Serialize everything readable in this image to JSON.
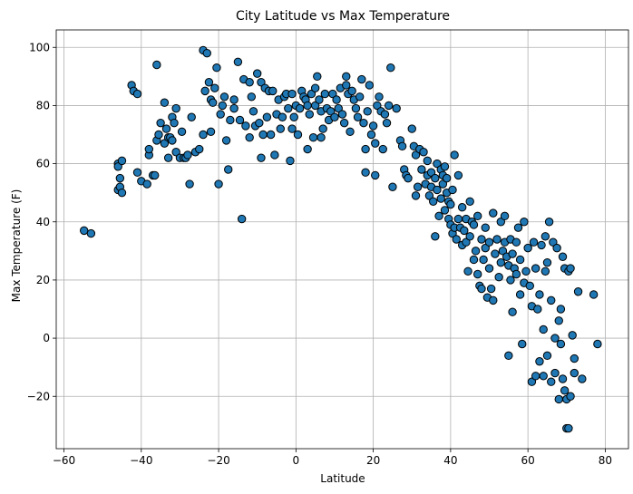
{
  "chart_data": {
    "type": "scatter",
    "title": "City Latitude vs Max Temperature",
    "xlabel": "Latitude",
    "ylabel": "Max Temperature (F)",
    "xlim": [
      -62,
      86
    ],
    "ylim": [
      -38,
      106
    ],
    "xticks": [
      -60,
      -40,
      -20,
      0,
      20,
      40,
      60,
      80
    ],
    "yticks": [
      -20,
      0,
      20,
      40,
      60,
      80,
      100
    ],
    "grid": true,
    "marker_color": "#1f77b4",
    "marker_edge_color": "#000000",
    "points": [
      [
        -54.8,
        37
      ],
      [
        -53,
        36
      ],
      [
        -46,
        60
      ],
      [
        -46,
        59
      ],
      [
        -45.5,
        55
      ],
      [
        -46,
        51
      ],
      [
        -45.5,
        52
      ],
      [
        -45,
        50
      ],
      [
        -45,
        61
      ],
      [
        -42.5,
        87
      ],
      [
        -42,
        85
      ],
      [
        -41,
        84
      ],
      [
        -41,
        57
      ],
      [
        -40,
        54
      ],
      [
        -38.5,
        53
      ],
      [
        -38,
        63
      ],
      [
        -38,
        65
      ],
      [
        -37,
        56
      ],
      [
        -36.5,
        56
      ],
      [
        -36,
        68
      ],
      [
        -36,
        94
      ],
      [
        -35.5,
        70
      ],
      [
        -35,
        74
      ],
      [
        -34,
        67
      ],
      [
        -34,
        81
      ],
      [
        -33.5,
        72
      ],
      [
        -33,
        69
      ],
      [
        -33,
        62
      ],
      [
        -32.5,
        69
      ],
      [
        -32,
        68
      ],
      [
        -32,
        76
      ],
      [
        -31.5,
        74
      ],
      [
        -31,
        64
      ],
      [
        -31,
        79
      ],
      [
        -30,
        62
      ],
      [
        -29.5,
        71
      ],
      [
        -29,
        62
      ],
      [
        -28.5,
        62
      ],
      [
        -28,
        63
      ],
      [
        -27.5,
        53
      ],
      [
        -27,
        76
      ],
      [
        -26,
        64
      ],
      [
        -25,
        65
      ],
      [
        -24,
        70
      ],
      [
        -24,
        99
      ],
      [
        -23.5,
        85
      ],
      [
        -23,
        98
      ],
      [
        -22.5,
        88
      ],
      [
        -22,
        71
      ],
      [
        -22,
        82
      ],
      [
        -21.5,
        81
      ],
      [
        -21,
        86
      ],
      [
        -20.5,
        93
      ],
      [
        -20,
        53
      ],
      [
        -19.5,
        77
      ],
      [
        -19,
        80
      ],
      [
        -18.5,
        83
      ],
      [
        -18,
        68
      ],
      [
        -17.5,
        58
      ],
      [
        -17,
        75
      ],
      [
        -16,
        79
      ],
      [
        -16,
        82
      ],
      [
        -15,
        95
      ],
      [
        -14.5,
        75
      ],
      [
        -14,
        41
      ],
      [
        -13.5,
        89
      ],
      [
        -13,
        73
      ],
      [
        -12,
        88
      ],
      [
        -12,
        69
      ],
      [
        -11.5,
        83
      ],
      [
        -11,
        78
      ],
      [
        -10.5,
        73
      ],
      [
        -10,
        91
      ],
      [
        -9.5,
        74
      ],
      [
        -9,
        62
      ],
      [
        -9,
        88
      ],
      [
        -8.5,
        70
      ],
      [
        -8,
        86
      ],
      [
        -7.5,
        76
      ],
      [
        -7,
        85
      ],
      [
        -6.5,
        70
      ],
      [
        -6,
        85
      ],
      [
        -5.5,
        63
      ],
      [
        -5,
        77
      ],
      [
        -4.5,
        82
      ],
      [
        -4,
        72
      ],
      [
        -3.5,
        76
      ],
      [
        -3,
        83
      ],
      [
        -2.5,
        84
      ],
      [
        -2,
        79
      ],
      [
        -1.5,
        61
      ],
      [
        -1,
        84
      ],
      [
        -1,
        72
      ],
      [
        -0.5,
        76
      ],
      [
        0,
        80
      ],
      [
        0.5,
        70
      ],
      [
        1,
        79
      ],
      [
        1.5,
        85
      ],
      [
        2,
        83
      ],
      [
        2.5,
        82
      ],
      [
        3,
        80
      ],
      [
        3,
        65
      ],
      [
        3.5,
        77
      ],
      [
        4,
        84
      ],
      [
        4.5,
        69
      ],
      [
        5,
        86
      ],
      [
        5,
        80
      ],
      [
        5.5,
        90
      ],
      [
        6,
        82
      ],
      [
        6.5,
        78
      ],
      [
        6.5,
        69
      ],
      [
        7,
        72
      ],
      [
        7.5,
        84
      ],
      [
        8,
        79
      ],
      [
        8.5,
        75
      ],
      [
        9,
        78
      ],
      [
        9.5,
        84
      ],
      [
        10,
        76
      ],
      [
        10.5,
        82
      ],
      [
        11,
        79
      ],
      [
        11.5,
        86
      ],
      [
        12,
        77
      ],
      [
        12.5,
        74
      ],
      [
        13,
        90
      ],
      [
        13,
        87
      ],
      [
        13.5,
        84
      ],
      [
        14,
        71
      ],
      [
        14.5,
        85
      ],
      [
        15,
        82
      ],
      [
        15.5,
        79
      ],
      [
        16,
        76
      ],
      [
        16.5,
        83
      ],
      [
        17,
        89
      ],
      [
        17.5,
        74
      ],
      [
        18,
        65
      ],
      [
        18,
        57
      ],
      [
        18.5,
        78
      ],
      [
        19,
        87
      ],
      [
        19.5,
        70
      ],
      [
        20,
        73
      ],
      [
        20.5,
        67
      ],
      [
        20.5,
        56
      ],
      [
        21,
        80
      ],
      [
        21.5,
        83
      ],
      [
        22,
        78
      ],
      [
        22.5,
        65
      ],
      [
        23,
        77
      ],
      [
        23.5,
        74
      ],
      [
        24,
        80
      ],
      [
        24.5,
        93
      ],
      [
        25,
        52
      ],
      [
        26,
        79
      ],
      [
        27,
        68
      ],
      [
        27.5,
        66
      ],
      [
        28,
        58
      ],
      [
        28.5,
        56
      ],
      [
        29,
        55
      ],
      [
        30,
        72
      ],
      [
        30.5,
        66
      ],
      [
        31,
        63
      ],
      [
        31,
        49
      ],
      [
        31.5,
        52
      ],
      [
        32,
        65
      ],
      [
        32.5,
        58
      ],
      [
        33,
        64
      ],
      [
        33.5,
        53
      ],
      [
        34,
        56
      ],
      [
        34,
        61
      ],
      [
        34.5,
        49
      ],
      [
        35,
        57
      ],
      [
        35,
        52
      ],
      [
        35.5,
        47
      ],
      [
        36,
        55
      ],
      [
        36,
        35
      ],
      [
        36.5,
        60
      ],
      [
        36.5,
        51
      ],
      [
        37,
        42
      ],
      [
        37.5,
        58
      ],
      [
        37.5,
        48
      ],
      [
        38,
        53
      ],
      [
        38,
        56
      ],
      [
        38.5,
        44
      ],
      [
        38.5,
        59
      ],
      [
        39,
        55
      ],
      [
        39,
        50
      ],
      [
        39.5,
        47
      ],
      [
        39.5,
        41
      ],
      [
        40,
        46
      ],
      [
        40,
        39
      ],
      [
        40.5,
        51
      ],
      [
        40.5,
        36
      ],
      [
        41,
        38
      ],
      [
        41,
        63
      ],
      [
        41.5,
        34
      ],
      [
        42,
        41
      ],
      [
        42,
        56
      ],
      [
        42.5,
        38
      ],
      [
        43,
        32
      ],
      [
        43,
        45
      ],
      [
        43.5,
        37
      ],
      [
        44,
        41
      ],
      [
        44,
        33
      ],
      [
        44.5,
        23
      ],
      [
        45,
        35
      ],
      [
        45,
        47
      ],
      [
        45.5,
        40
      ],
      [
        46,
        39
      ],
      [
        46,
        27
      ],
      [
        46.5,
        30
      ],
      [
        47,
        22
      ],
      [
        47,
        42
      ],
      [
        47.5,
        18
      ],
      [
        48,
        34
      ],
      [
        48,
        17
      ],
      [
        48.5,
        27
      ],
      [
        49,
        31
      ],
      [
        49,
        38
      ],
      [
        49.5,
        14
      ],
      [
        50,
        24
      ],
      [
        50,
        33
      ],
      [
        50.5,
        17
      ],
      [
        51,
        13
      ],
      [
        51,
        43
      ],
      [
        51.5,
        29
      ],
      [
        52,
        34
      ],
      [
        52.5,
        21
      ],
      [
        53,
        26
      ],
      [
        53,
        40
      ],
      [
        53.5,
        30
      ],
      [
        54,
        33
      ],
      [
        54,
        42
      ],
      [
        54.5,
        28
      ],
      [
        55,
        -6
      ],
      [
        55,
        25
      ],
      [
        55.5,
        34
      ],
      [
        55.5,
        20
      ],
      [
        56,
        29
      ],
      [
        56,
        9
      ],
      [
        56.5,
        24
      ],
      [
        57,
        33
      ],
      [
        57,
        22
      ],
      [
        57.5,
        38
      ],
      [
        58,
        27
      ],
      [
        58,
        15
      ],
      [
        58.5,
        -2
      ],
      [
        59,
        19
      ],
      [
        59,
        40
      ],
      [
        59.5,
        23
      ],
      [
        60,
        31
      ],
      [
        60.5,
        18
      ],
      [
        61,
        -15
      ],
      [
        61,
        11
      ],
      [
        61.5,
        33
      ],
      [
        62,
        -13
      ],
      [
        62,
        24
      ],
      [
        62.5,
        10
      ],
      [
        63,
        15
      ],
      [
        63,
        -8
      ],
      [
        63.5,
        32
      ],
      [
        64,
        -13
      ],
      [
        64,
        3
      ],
      [
        64.5,
        23
      ],
      [
        64.5,
        35
      ],
      [
        65,
        26
      ],
      [
        65,
        -6
      ],
      [
        65.5,
        40
      ],
      [
        66,
        13
      ],
      [
        66,
        -15
      ],
      [
        66.5,
        33
      ],
      [
        67,
        -12
      ],
      [
        67,
        0
      ],
      [
        67.5,
        31
      ],
      [
        68,
        6
      ],
      [
        68,
        -21
      ],
      [
        68.5,
        10
      ],
      [
        68.5,
        -2
      ],
      [
        69,
        28
      ],
      [
        69,
        -14
      ],
      [
        69.5,
        -18
      ],
      [
        69.5,
        24
      ],
      [
        70,
        -31
      ],
      [
        70,
        -21
      ],
      [
        70.5,
        23
      ],
      [
        70.5,
        -31
      ],
      [
        71,
        24
      ],
      [
        71,
        -20
      ],
      [
        71.5,
        1
      ],
      [
        72,
        -7
      ],
      [
        72,
        -12
      ],
      [
        73,
        16
      ],
      [
        74,
        -14
      ],
      [
        77,
        15
      ],
      [
        78,
        -2
      ]
    ]
  }
}
